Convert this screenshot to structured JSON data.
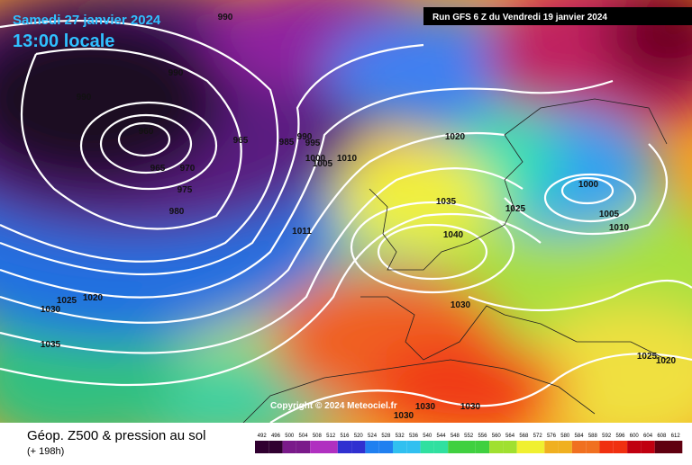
{
  "header": {
    "date": "Samedi 27 janvier 2024",
    "time": "13:00 locale",
    "run": "Run GFS 6 Z du Vendredi 19 janvier 2024"
  },
  "copyright": "Copyright © 2024 Meteociel.fr",
  "footer": {
    "title": "Géop. Z500 & pression au sol",
    "lead": "(+ 198h)"
  },
  "colorbar": {
    "labels": [
      492,
      496,
      500,
      504,
      508,
      512,
      516,
      520,
      524,
      528,
      532,
      536,
      540,
      544,
      548,
      552,
      556,
      560,
      564,
      568,
      572,
      576,
      580,
      584,
      588,
      592,
      596,
      600,
      604,
      608,
      612
    ]
  },
  "isobars": {
    "labels": [
      990,
      990,
      990,
      960,
      965,
      970,
      965,
      975,
      980,
      985,
      990,
      995,
      1000,
      1005,
      1010,
      1020,
      1035,
      1040,
      1025,
      1000,
      1005,
      1010,
      1011,
      1025,
      1020,
      1030,
      1035,
      1030,
      1025,
      1020,
      1030,
      1030,
      1030
    ]
  }
}
